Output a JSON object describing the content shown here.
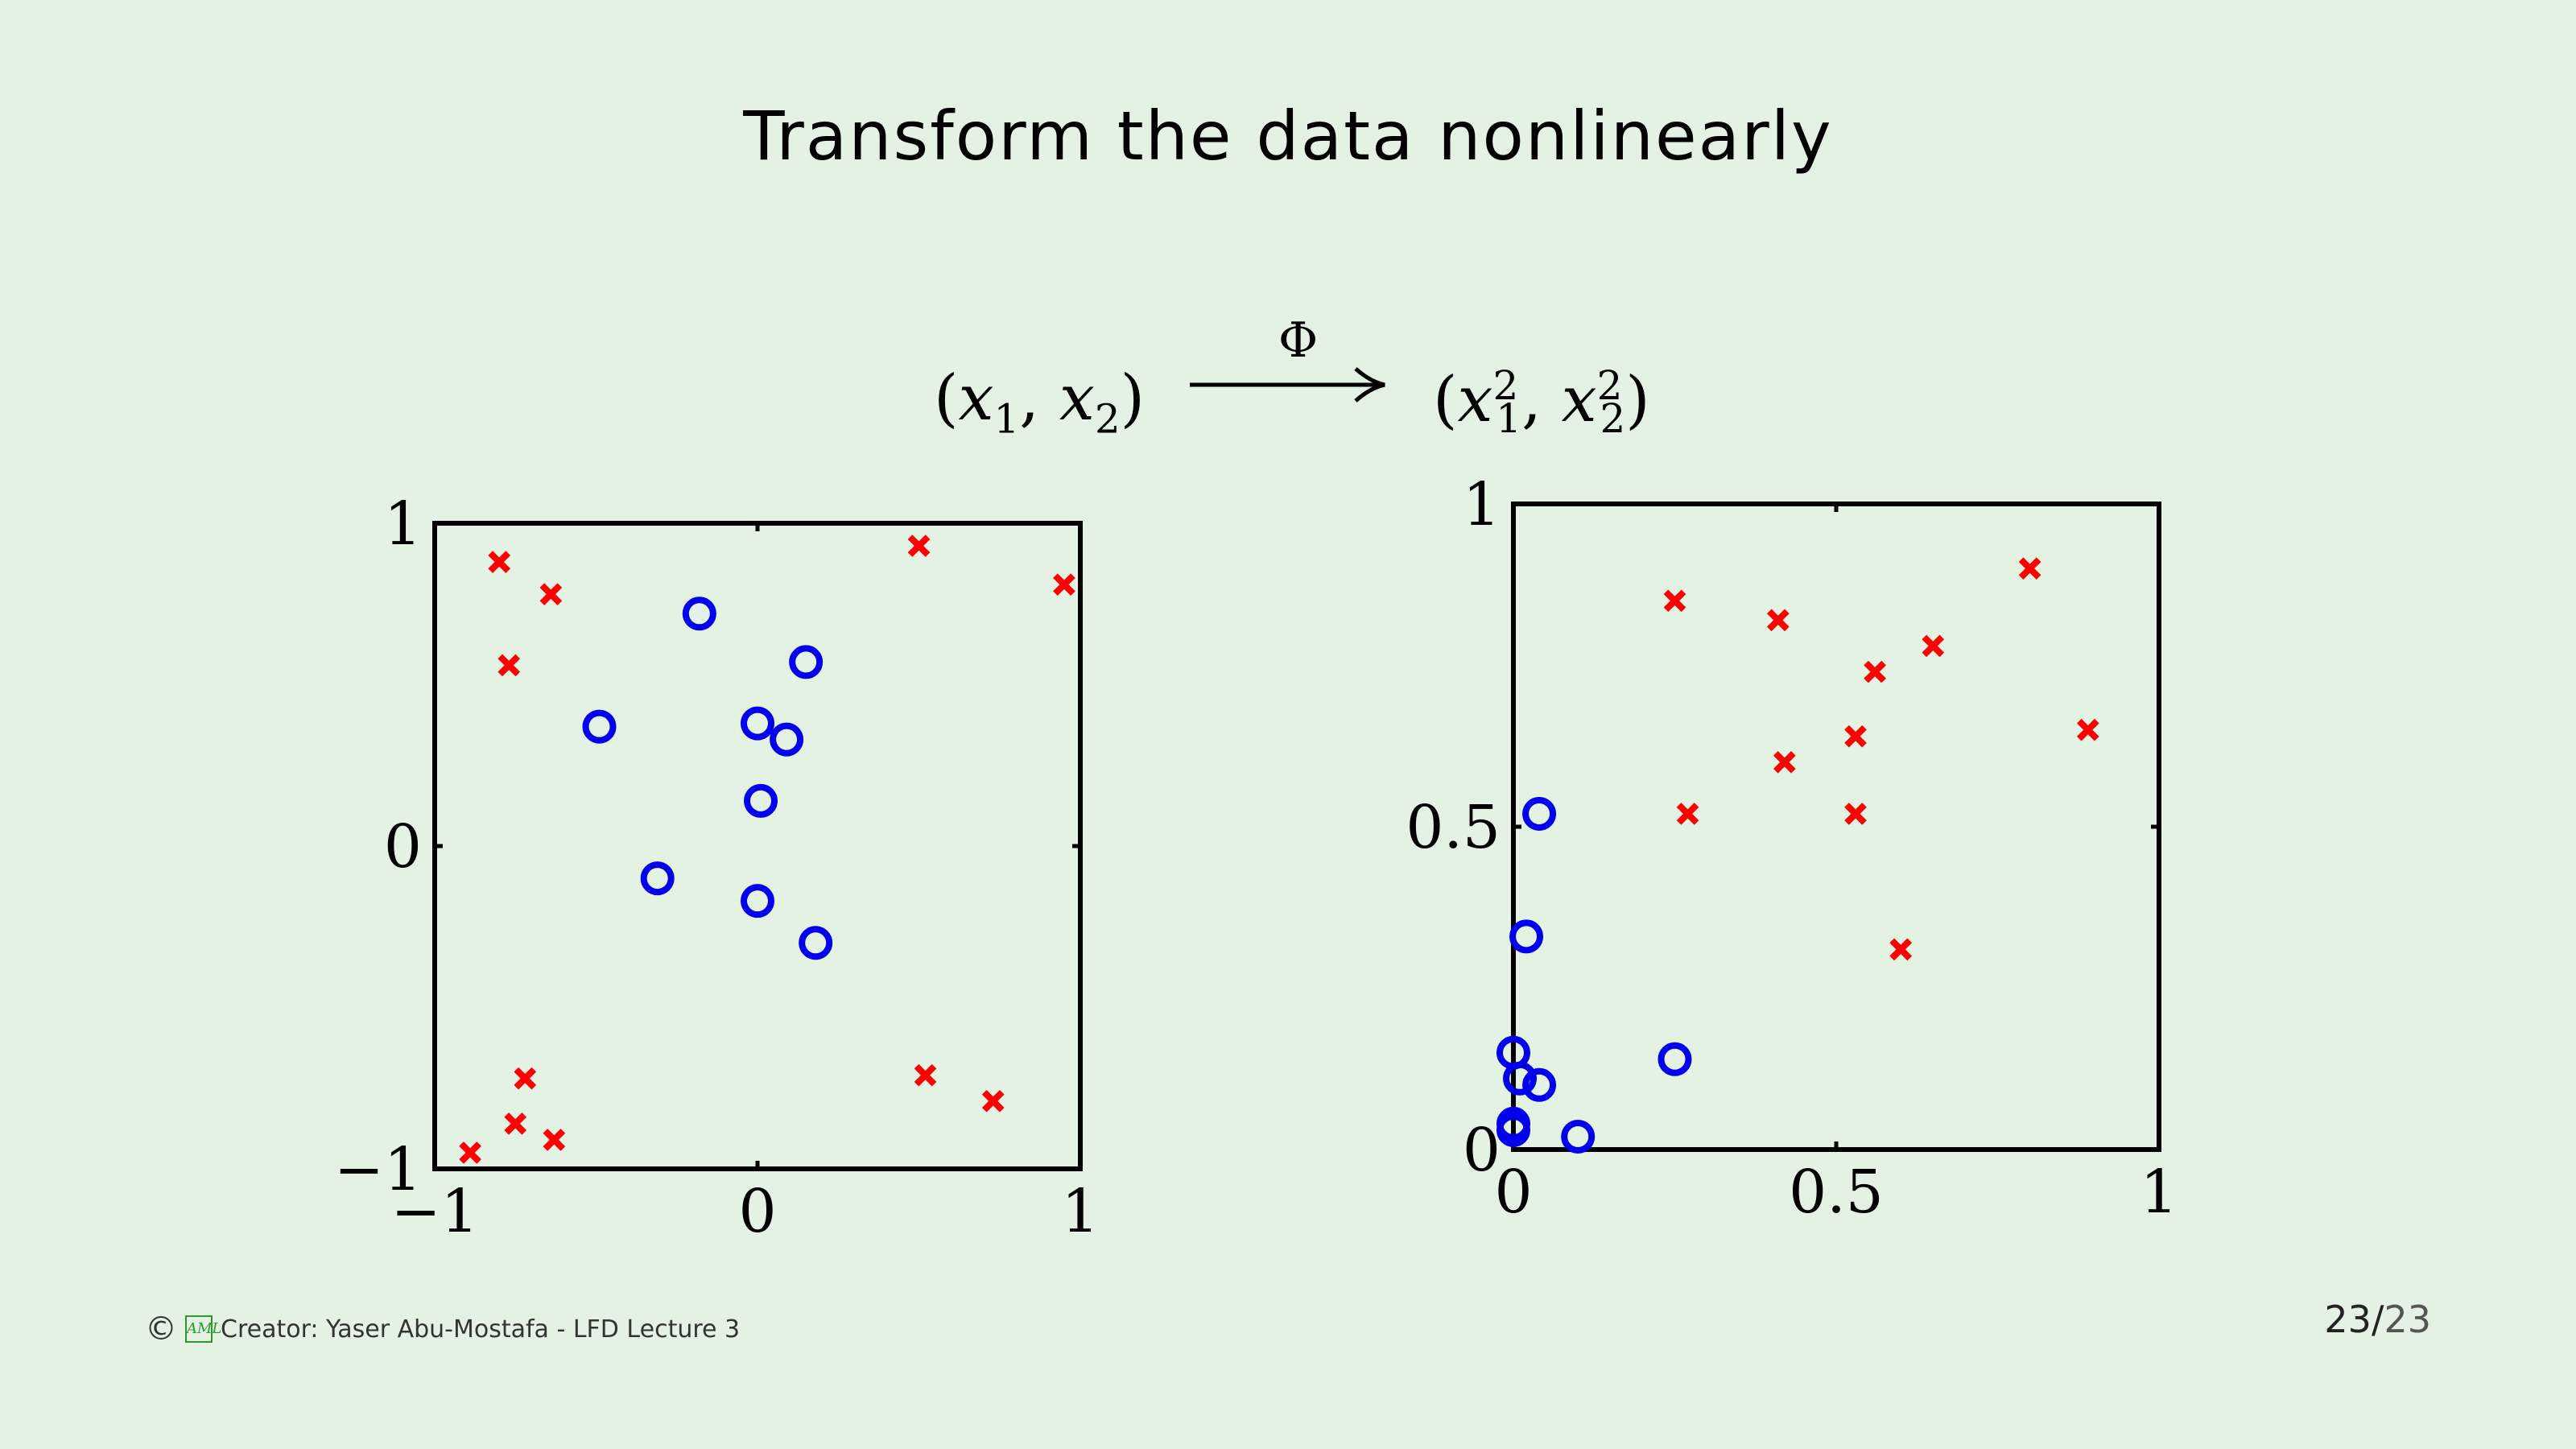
{
  "slide": {
    "title": "Transform the data nonlinearly",
    "mapping": {
      "left_expr": "(x1, x2)",
      "symbol": "Φ",
      "right_expr": "(x1², x2²)"
    },
    "footer": {
      "copyright_symbol": "©",
      "logo_text": "AML",
      "credit": "Creator: Yaser Abu-Mostafa - LFD Lecture 3"
    },
    "page": {
      "current": "23",
      "separator": "/",
      "total": "23"
    }
  },
  "chart_data": [
    {
      "type": "scatter",
      "title": "",
      "xlim": [
        -1,
        1
      ],
      "ylim": [
        -1,
        1
      ],
      "x_ticks": [
        -1,
        0,
        1
      ],
      "y_ticks": [
        -1,
        0,
        1
      ],
      "x_tick_labels": [
        "−1",
        "0",
        "1"
      ],
      "y_tick_labels": [
        "−1",
        "0",
        "1"
      ],
      "series": [
        {
          "marker": "x",
          "color": "#ff0000",
          "points": [
            [
              -0.8,
              0.88
            ],
            [
              -0.64,
              0.78
            ],
            [
              -0.77,
              0.56
            ],
            [
              0.5,
              0.93
            ],
            [
              0.95,
              0.81
            ],
            [
              -0.72,
              -0.72
            ],
            [
              -0.75,
              -0.86
            ],
            [
              -0.63,
              -0.91
            ],
            [
              -0.89,
              -0.95
            ],
            [
              0.52,
              -0.71
            ],
            [
              0.73,
              -0.79
            ]
          ]
        },
        {
          "marker": "o",
          "color": "#0000ee",
          "points": [
            [
              -0.18,
              0.72
            ],
            [
              0.15,
              0.57
            ],
            [
              -0.49,
              0.37
            ],
            [
              0.0,
              0.38
            ],
            [
              0.09,
              0.33
            ],
            [
              0.01,
              0.14
            ],
            [
              -0.31,
              -0.1
            ],
            [
              0.0,
              -0.17
            ],
            [
              0.18,
              -0.3
            ]
          ]
        }
      ]
    },
    {
      "type": "scatter",
      "title": "",
      "xlim": [
        0,
        1
      ],
      "ylim": [
        0,
        1
      ],
      "x_ticks": [
        0,
        0.5,
        1
      ],
      "y_ticks": [
        0,
        0.5,
        1
      ],
      "x_tick_labels": [
        "0",
        "0.5",
        "1"
      ],
      "y_tick_labels": [
        "0",
        "0.5",
        "1"
      ],
      "series": [
        {
          "marker": "x",
          "color": "#ff0000",
          "points": [
            [
              0.25,
              0.85
            ],
            [
              0.41,
              0.82
            ],
            [
              0.8,
              0.9
            ],
            [
              0.65,
              0.78
            ],
            [
              0.56,
              0.74
            ],
            [
              0.53,
              0.64
            ],
            [
              0.42,
              0.6
            ],
            [
              0.89,
              0.65
            ],
            [
              0.27,
              0.52
            ],
            [
              0.53,
              0.52
            ],
            [
              0.6,
              0.31
            ]
          ]
        },
        {
          "marker": "o",
          "color": "#0000ee",
          "points": [
            [
              0.04,
              0.52
            ],
            [
              0.02,
              0.33
            ],
            [
              0.0,
              0.15
            ],
            [
              0.01,
              0.11
            ],
            [
              0.04,
              0.1
            ],
            [
              0.25,
              0.14
            ],
            [
              0.0,
              0.04
            ],
            [
              0.0,
              0.03
            ],
            [
              0.1,
              0.02
            ]
          ]
        }
      ]
    }
  ]
}
